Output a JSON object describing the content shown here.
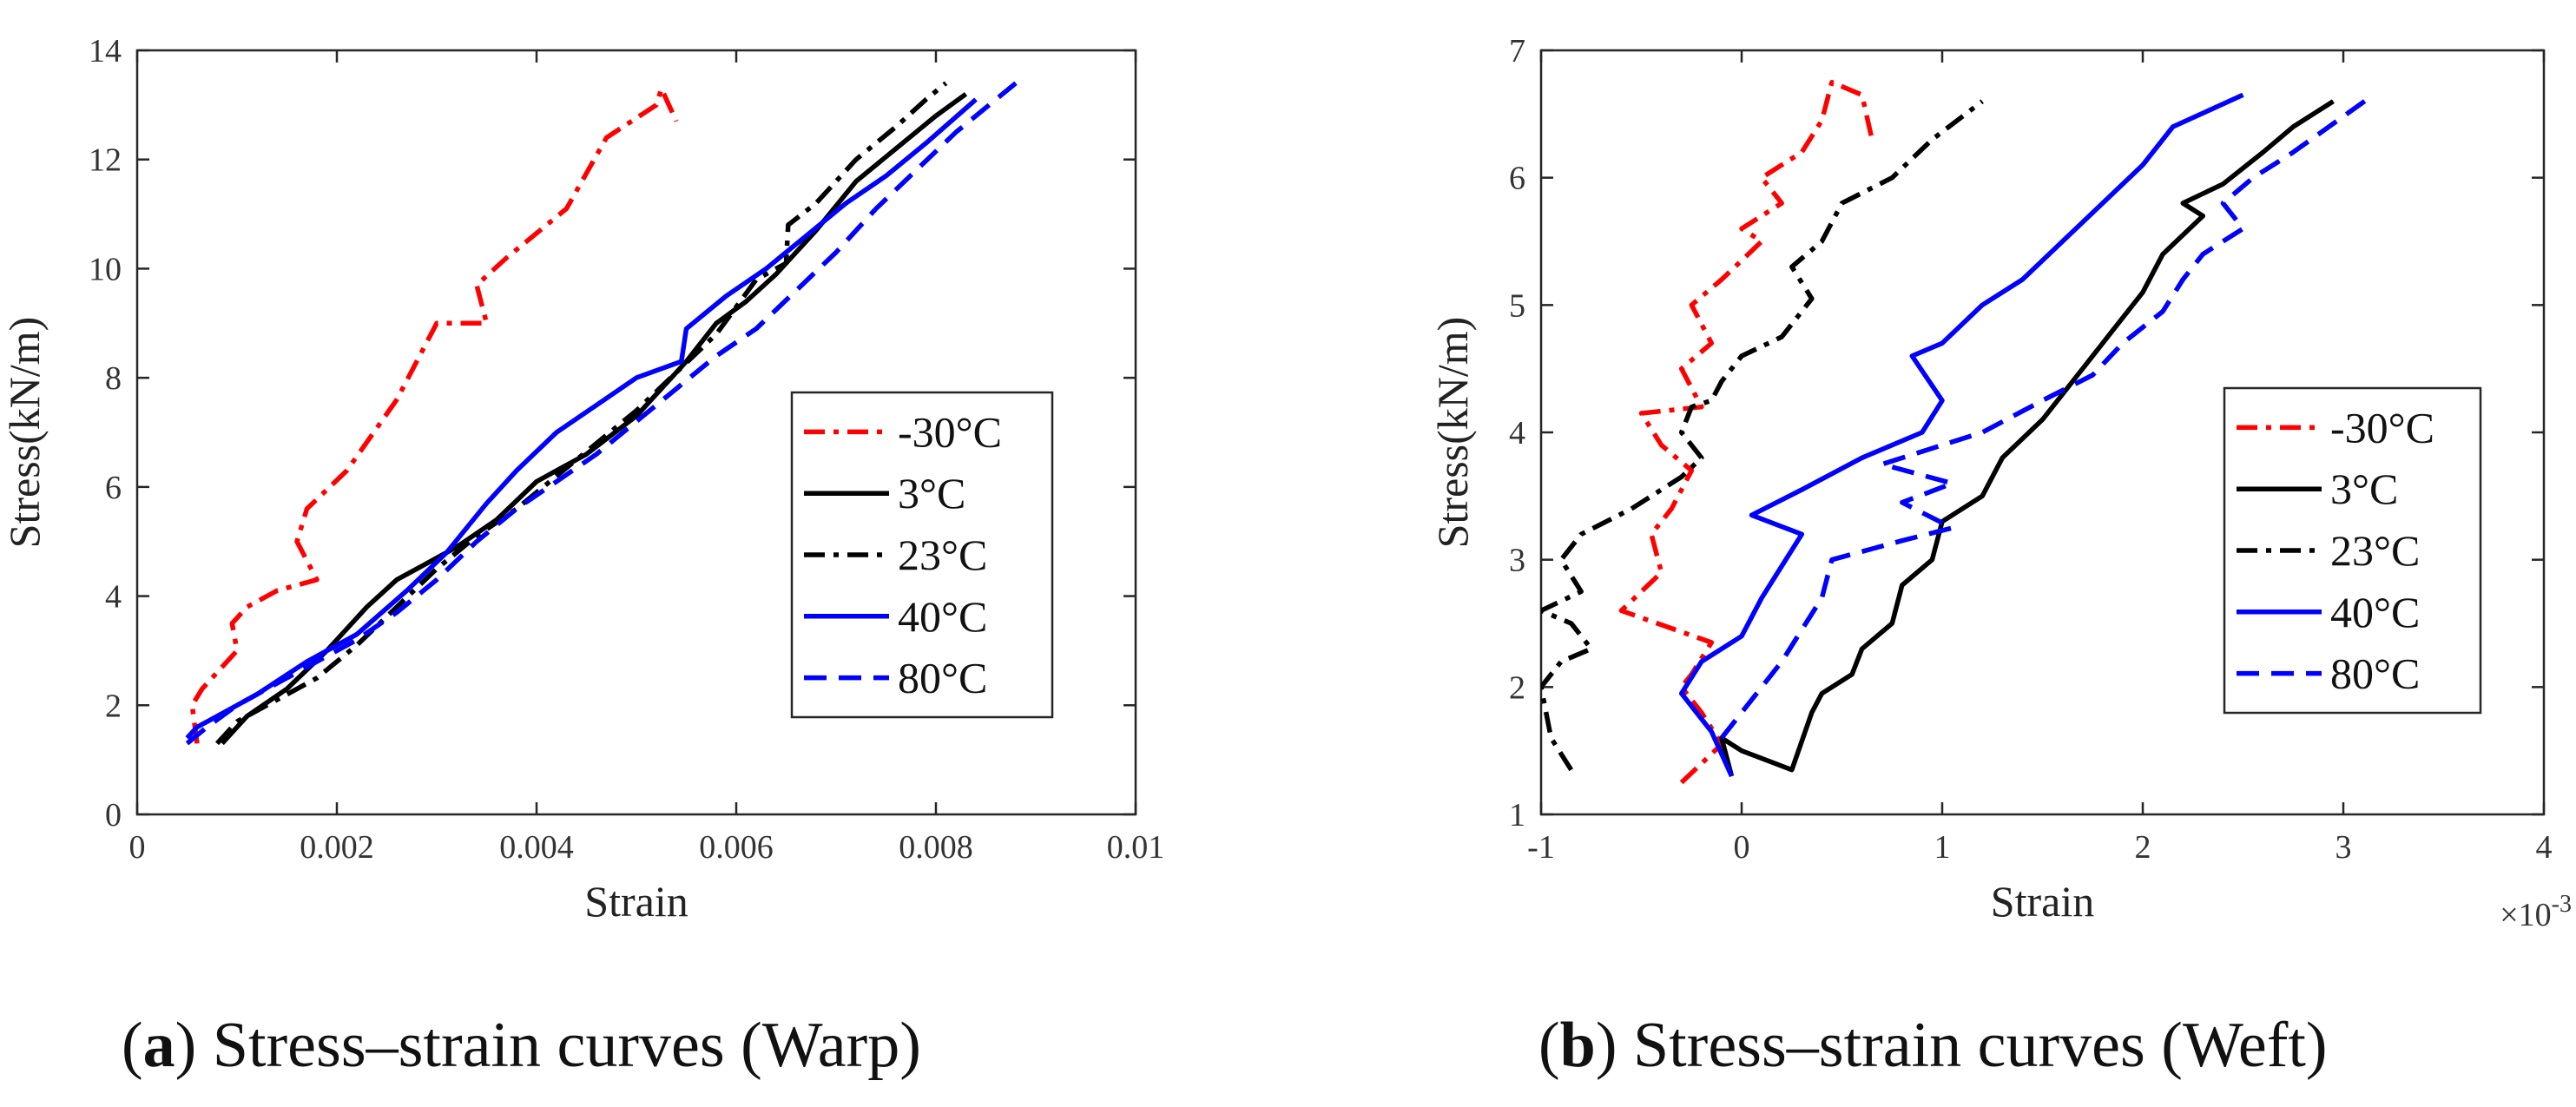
{
  "colors": {
    "red": "#ff0000",
    "black": "#000000",
    "blue": "#0000ff",
    "axis": "#262626"
  },
  "chart_data": [
    {
      "id": "warp",
      "type": "line",
      "caption_letter": "a",
      "caption_text": "Stress–strain curves (Warp)",
      "xlabel": "Strain",
      "ylabel": "Stress(kN/m)",
      "xlim": [
        0,
        0.01
      ],
      "ylim": [
        0,
        14
      ],
      "xticks": [
        0,
        0.002,
        0.004,
        0.006,
        0.008,
        0.01
      ],
      "xtick_labels": [
        "0",
        "0.002",
        "0.004",
        "0.006",
        "0.008",
        "0.01"
      ],
      "yticks": [
        0,
        2,
        4,
        6,
        8,
        10,
        12,
        14
      ],
      "ytick_labels": [
        "0",
        "2",
        "4",
        "6",
        "8",
        "10",
        "12",
        "14"
      ],
      "exponent_label": "",
      "grid": false,
      "legend_position": "center-right",
      "series": [
        {
          "name": "-30°C",
          "color": "#ff0000",
          "dash": "dashdot",
          "x": [
            0.0006,
            0.00055,
            0.00065,
            0.0009,
            0.001,
            0.00095,
            0.0011,
            0.0014,
            0.0018,
            0.0016,
            0.0017,
            0.0021,
            0.0026,
            0.003,
            0.0035,
            0.0034,
            0.0037,
            0.0043,
            0.0047,
            0.0052,
            0.00525,
            0.0054
          ],
          "y": [
            1.3,
            2.0,
            2.3,
            2.8,
            3.0,
            3.5,
            3.8,
            4.1,
            4.3,
            5.0,
            5.6,
            6.3,
            7.6,
            9.0,
            9.0,
            9.7,
            10.2,
            11.1,
            12.4,
            13.0,
            13.3,
            12.7
          ]
        },
        {
          "name": "3°C",
          "color": "#000000",
          "dash": "solid",
          "x": [
            0.00085,
            0.00095,
            0.0011,
            0.0015,
            0.0019,
            0.0023,
            0.0026,
            0.0029,
            0.0032,
            0.0036,
            0.004,
            0.0045,
            0.005,
            0.0055,
            0.0058,
            0.0061,
            0.0064,
            0.0068,
            0.0072,
            0.0076,
            0.008,
            0.0083
          ],
          "y": [
            1.3,
            1.5,
            1.8,
            2.3,
            3.0,
            3.8,
            4.3,
            4.6,
            4.9,
            5.4,
            6.1,
            6.6,
            7.3,
            8.3,
            9.0,
            9.4,
            9.9,
            10.7,
            11.6,
            12.2,
            12.8,
            13.2
          ]
        },
        {
          "name": "23°C",
          "color": "#000000",
          "dash": "dashdot",
          "x": [
            0.0008,
            0.001,
            0.0014,
            0.0018,
            0.0022,
            0.0026,
            0.003,
            0.0034,
            0.0038,
            0.0042,
            0.0046,
            0.005,
            0.0054,
            0.0058,
            0.0062,
            0.0065,
            0.00652,
            0.0068,
            0.0072,
            0.0076,
            0.0079,
            0.0081
          ],
          "y": [
            1.3,
            1.7,
            2.1,
            2.5,
            3.1,
            3.8,
            4.5,
            5.1,
            5.6,
            6.2,
            6.8,
            7.4,
            8.1,
            8.8,
            9.8,
            10.1,
            10.8,
            11.2,
            12.0,
            12.6,
            13.1,
            13.4
          ]
        },
        {
          "name": "40°C",
          "color": "#0000ff",
          "dash": "solid",
          "x": [
            0.0005,
            0.0006,
            0.0008,
            0.0012,
            0.0017,
            0.0022,
            0.0027,
            0.0031,
            0.0035,
            0.0038,
            0.0042,
            0.0046,
            0.005,
            0.00545,
            0.0055,
            0.0059,
            0.0063,
            0.0067,
            0.0071,
            0.0075,
            0.0079,
            0.0084
          ],
          "y": [
            1.4,
            1.6,
            1.8,
            2.2,
            2.8,
            3.3,
            4.1,
            4.8,
            5.7,
            6.3,
            7.0,
            7.5,
            8.0,
            8.3,
            8.9,
            9.5,
            10.0,
            10.6,
            11.2,
            11.7,
            12.3,
            13.1
          ]
        },
        {
          "name": "80°C",
          "color": "#0000ff",
          "dash": "dashed",
          "x": [
            0.0005,
            0.0007,
            0.001,
            0.0014,
            0.0018,
            0.0022,
            0.0026,
            0.003,
            0.0034,
            0.0038,
            0.0042,
            0.0046,
            0.005,
            0.0054,
            0.0058,
            0.0062,
            0.0066,
            0.007,
            0.0074,
            0.0078,
            0.0082,
            0.0088
          ],
          "y": [
            1.3,
            1.6,
            2.0,
            2.4,
            2.8,
            3.2,
            3.7,
            4.3,
            5.0,
            5.6,
            6.1,
            6.6,
            7.2,
            7.8,
            8.4,
            8.9,
            9.6,
            10.3,
            11.1,
            11.8,
            12.5,
            13.4
          ]
        }
      ]
    },
    {
      "id": "weft",
      "type": "line",
      "caption_letter": "b",
      "caption_text": "Stress–strain curves (Weft)",
      "xlabel": "Strain",
      "ylabel": "Stress(kN/m)",
      "xlim": [
        -1,
        4
      ],
      "ylim": [
        1,
        7
      ],
      "xticks": [
        -1,
        0,
        1,
        2,
        3,
        4
      ],
      "xtick_labels": [
        "-1",
        "0",
        "1",
        "2",
        "3",
        "4"
      ],
      "yticks": [
        1,
        2,
        3,
        4,
        5,
        6,
        7
      ],
      "ytick_labels": [
        "1",
        "2",
        "3",
        "4",
        "5",
        "6",
        "7"
      ],
      "exponent_label": "×10-3",
      "grid": false,
      "legend_position": "center-right",
      "series": [
        {
          "name": "-30°C",
          "color": "#ff0000",
          "dash": "dashdot",
          "x": [
            -0.3,
            -0.1,
            -0.2,
            -0.3,
            -0.25,
            -0.15,
            -0.6,
            -0.4,
            -0.45,
            -0.35,
            -0.25,
            -0.4,
            -0.5,
            -0.2,
            -0.3,
            -0.15,
            -0.25,
            -0.1,
            0.1,
            0.0,
            0.2,
            0.1,
            0.3,
            0.4,
            0.45,
            0.6,
            0.65
          ],
          "y": [
            1.25,
            1.55,
            1.8,
            2.0,
            2.1,
            2.35,
            2.6,
            2.9,
            3.2,
            3.4,
            3.7,
            3.9,
            4.15,
            4.2,
            4.5,
            4.7,
            5.0,
            5.2,
            5.5,
            5.6,
            5.8,
            6.0,
            6.2,
            6.45,
            6.75,
            6.65,
            6.3
          ]
        },
        {
          "name": "3°C",
          "color": "#000000",
          "dash": "solid",
          "x": [
            -0.05,
            -0.1,
            0.0,
            0.25,
            0.35,
            0.4,
            0.55,
            0.6,
            0.75,
            0.8,
            0.95,
            1.0,
            1.2,
            1.3,
            1.5,
            1.7,
            1.85,
            2.0,
            2.1,
            2.3,
            2.2,
            2.4,
            2.6,
            2.75,
            2.95
          ],
          "y": [
            1.3,
            1.6,
            1.5,
            1.35,
            1.8,
            1.95,
            2.1,
            2.3,
            2.5,
            2.8,
            3.0,
            3.3,
            3.5,
            3.8,
            4.1,
            4.5,
            4.8,
            5.1,
            5.4,
            5.7,
            5.8,
            5.95,
            6.2,
            6.4,
            6.6
          ]
        },
        {
          "name": "23°C",
          "color": "#000000",
          "dash": "dashdot",
          "x": [
            -0.85,
            -0.95,
            -1.0,
            -0.9,
            -0.75,
            -0.85,
            -1.0,
            -0.8,
            -0.9,
            -0.8,
            -0.55,
            -0.3,
            -0.2,
            -0.3,
            -0.25,
            -0.15,
            -0.1,
            0.0,
            0.2,
            0.35,
            0.25,
            0.4,
            0.5,
            0.75,
            0.95,
            1.2
          ],
          "y": [
            1.35,
            1.6,
            2.0,
            2.2,
            2.3,
            2.5,
            2.6,
            2.75,
            3.0,
            3.2,
            3.4,
            3.65,
            3.8,
            4.0,
            4.2,
            4.25,
            4.4,
            4.6,
            4.75,
            5.05,
            5.3,
            5.5,
            5.8,
            6.0,
            6.3,
            6.6
          ]
        },
        {
          "name": "40°C",
          "color": "#0000ff",
          "dash": "solid",
          "x": [
            -0.05,
            -0.15,
            -0.2,
            -0.3,
            -0.2,
            0.0,
            0.1,
            0.2,
            0.3,
            0.05,
            0.3,
            0.6,
            0.9,
            1.0,
            0.85,
            1.0,
            1.2,
            1.4,
            1.6,
            1.8,
            2.0,
            2.15,
            2.5
          ],
          "y": [
            1.3,
            1.65,
            1.75,
            1.95,
            2.2,
            2.4,
            2.7,
            2.95,
            3.2,
            3.35,
            3.55,
            3.8,
            4.0,
            4.25,
            4.6,
            4.7,
            5.0,
            5.2,
            5.5,
            5.8,
            6.1,
            6.4,
            6.65
          ]
        },
        {
          "name": "80°C",
          "color": "#0000ff",
          "dash": "dashed",
          "x": [
            -0.1,
            0.0,
            0.1,
            0.2,
            0.3,
            0.4,
            0.45,
            0.8,
            1.05,
            0.8,
            1.05,
            0.7,
            1.2,
            1.5,
            1.75,
            1.9,
            2.1,
            2.2,
            2.3,
            2.5,
            2.4,
            2.55,
            2.75,
            3.15
          ],
          "y": [
            1.6,
            1.8,
            2.0,
            2.2,
            2.45,
            2.7,
            3.0,
            3.15,
            3.25,
            3.45,
            3.6,
            3.75,
            4.0,
            4.25,
            4.45,
            4.7,
            4.95,
            5.2,
            5.4,
            5.6,
            5.8,
            6.0,
            6.2,
            6.65
          ]
        }
      ]
    }
  ]
}
